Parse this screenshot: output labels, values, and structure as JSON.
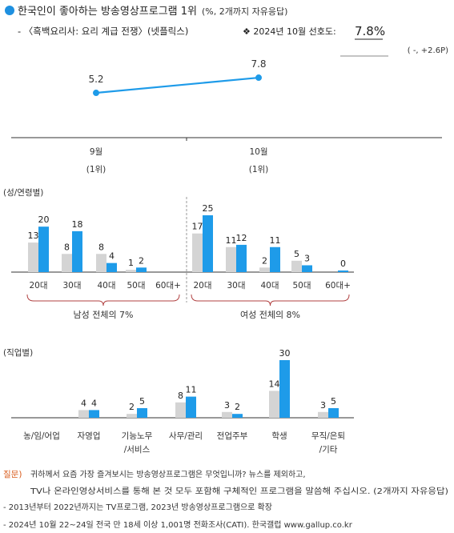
{
  "header": {
    "line1_main": "한국인이 좋아하는 방송영상프로그램 1위",
    "line1_suffix": "(%, 2개까지 자유응답)",
    "line2_left": "- 〈흑백요리사: 요리 계급 전쟁〉(넷플릭스)",
    "line2_mid": "❖  2024년 10월 선호도:",
    "line2_value": "7.8%",
    "change_badge": "( -, +2.6P)"
  },
  "colors": {
    "bullet": "#1e90e0",
    "accent": "#1e9be9",
    "gray": "#d4d4d4",
    "bracket": "#b04040",
    "question_label": "#d85a1a"
  },
  "chart_data": [
    {
      "type": "line",
      "categories": [
        "9월",
        "10월"
      ],
      "sublabels": [
        "(1위)",
        "(1위)"
      ],
      "values": [
        5.2,
        7.8
      ]
    },
    {
      "type": "bar",
      "section_label": "(성/연령별)",
      "groups": [
        {
          "name": "남성 전체의 7%",
          "categories": [
            "20대",
            "30대",
            "40대",
            "50대",
            "60대+"
          ],
          "prev": [
            13,
            8,
            8,
            1,
            null
          ],
          "curr": [
            20,
            18,
            4,
            2,
            null
          ]
        },
        {
          "name": "여성 전체의 8%",
          "categories": [
            "20대",
            "30대",
            "40대",
            "50대",
            "60대+"
          ],
          "prev": [
            17,
            11,
            2,
            5,
            null
          ],
          "curr": [
            25,
            12,
            11,
            3,
            0
          ]
        }
      ]
    },
    {
      "type": "bar",
      "section_label": "(직업별)",
      "categories": [
        "농/임/어업",
        "자영업",
        "기능노무\n/서비스",
        "사무/관리",
        "전업주부",
        "학생",
        "무직/은퇴\n/기타"
      ],
      "prev": [
        null,
        4,
        2,
        8,
        3,
        14,
        3
      ],
      "curr": [
        null,
        4,
        5,
        11,
        2,
        30,
        5
      ]
    }
  ],
  "footer": {
    "question_label": "질문)",
    "question_line1": "귀하께서 요즘 가장 즐겨보시는 방송영상프로그램은 무엇입니까? 뉴스를 제외하고,",
    "question_line2": "TV나 온라인영상서비스를 통해 본 것 모두 포함해 구체적인 프로그램을 말씀해 주십시오. (2개까지 자유응답)",
    "note1": "- 2013년부터 2022년까지는 TV프로그램, 2023년 방송영상프로그램으로 확장",
    "note2": "- 2024년 10월 22~24일 전국 만 18세 이상 1,001명 전화조사(CATI). 한국갤럽 www.gallup.co.kr"
  }
}
